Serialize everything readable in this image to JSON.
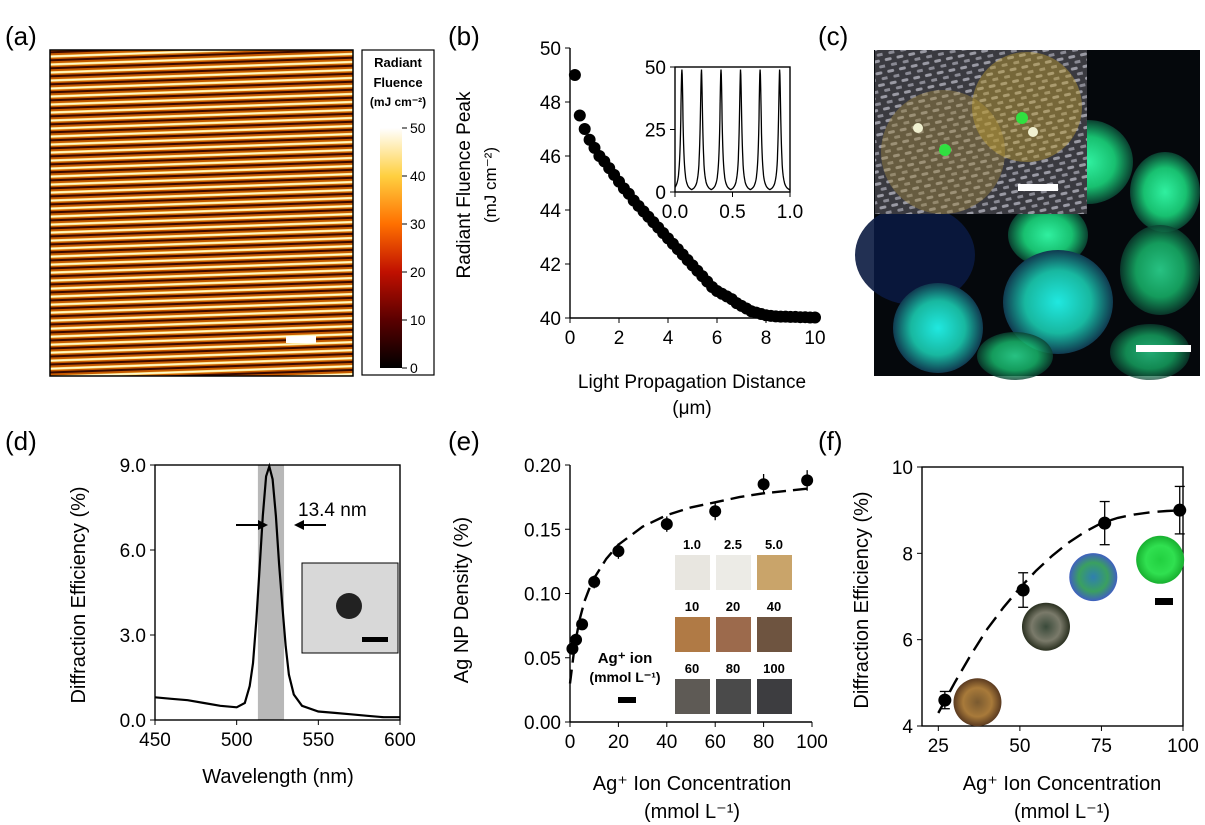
{
  "panel_labels": [
    "(a)",
    "(b)",
    "(c)",
    "(d)",
    "(e)",
    "(f)"
  ],
  "colorbar": {
    "title_lines": [
      "Radiant",
      "Fluence",
      "(mJ cm⁻²)"
    ],
    "ticks": [
      0,
      10,
      20,
      30,
      40,
      50
    ]
  },
  "photo_c": {
    "description_colors": [
      "#0b0f14",
      "#1fd05a",
      "#18c8c0"
    ]
  },
  "chart_data": [
    {
      "panel": "b",
      "type": "scatter",
      "xlabel": "Light Propagation Distance",
      "xlabel_unit": "(μm)",
      "ylabel": "Radiant Fluence Peak",
      "ylabel_unit": "(mJ cm⁻²)",
      "xlim": [
        0,
        10
      ],
      "ylim": [
        40,
        50
      ],
      "xticks": [
        0,
        2,
        4,
        6,
        8,
        10
      ],
      "yticks": [
        40,
        42,
        44,
        46,
        48,
        50
      ],
      "x": [
        0.2,
        0.4,
        0.6,
        0.8,
        1.0,
        1.2,
        1.4,
        1.6,
        1.8,
        2.0,
        2.2,
        2.4,
        2.6,
        2.8,
        3.0,
        3.2,
        3.4,
        3.6,
        3.8,
        4.0,
        4.2,
        4.4,
        4.6,
        4.8,
        5.0,
        5.2,
        5.4,
        5.6,
        5.8,
        6.0,
        6.2,
        6.4,
        6.6,
        6.8,
        7.0,
        7.2,
        7.4,
        7.6,
        7.8,
        8.0,
        8.2,
        8.4,
        8.6,
        8.8,
        9.0,
        9.2,
        9.4,
        9.6,
        9.8,
        10.0
      ],
      "y": [
        49.0,
        47.5,
        47.0,
        46.6,
        46.3,
        46.0,
        45.8,
        45.55,
        45.3,
        45.05,
        44.8,
        44.6,
        44.35,
        44.15,
        43.95,
        43.75,
        43.55,
        43.35,
        43.15,
        42.95,
        42.75,
        42.55,
        42.35,
        42.15,
        41.95,
        41.75,
        41.55,
        41.35,
        41.15,
        41.0,
        40.9,
        40.8,
        40.7,
        40.55,
        40.45,
        40.35,
        40.25,
        40.2,
        40.15,
        40.1,
        40.08,
        40.06,
        40.05,
        40.05,
        40.04,
        40.04,
        40.03,
        40.03,
        40.02,
        40.02
      ],
      "inset": {
        "type": "line",
        "xlim": [
          0,
          1
        ],
        "ylim": [
          0,
          50
        ],
        "xticks": [
          "0.0",
          "0.5",
          "1.0"
        ],
        "xtick_values": [
          0,
          0.5,
          1
        ],
        "yticks": [
          0,
          25,
          50
        ],
        "peaks_x": [
          0.06,
          0.23,
          0.4,
          0.57,
          0.74,
          0.91
        ],
        "peak_height": 49
      }
    },
    {
      "panel": "d",
      "type": "line",
      "xlabel": "Wavelength (nm)",
      "ylabel": "Diffraction Efficiency (%)",
      "xlim": [
        450,
        600
      ],
      "ylim": [
        0,
        9
      ],
      "xticks": [
        450,
        500,
        550,
        600
      ],
      "yticks": [
        "0.0",
        "3.0",
        "6.0",
        "9.0"
      ],
      "ytick_values": [
        0,
        3,
        6,
        9
      ],
      "x": [
        450,
        460,
        470,
        480,
        490,
        500,
        505,
        508,
        510,
        512,
        514,
        516,
        518,
        520,
        522,
        524,
        526,
        528,
        530,
        532,
        535,
        540,
        550,
        560,
        570,
        580,
        590,
        600
      ],
      "y": [
        0.8,
        0.75,
        0.7,
        0.6,
        0.5,
        0.45,
        0.6,
        1.2,
        2.0,
        3.5,
        5.3,
        7.2,
        8.6,
        8.95,
        8.5,
        7.2,
        5.5,
        4.0,
        2.6,
        1.6,
        0.9,
        0.5,
        0.3,
        0.25,
        0.2,
        0.15,
        0.1,
        0.1
      ],
      "band": [
        513,
        529
      ],
      "annotation": "13.4 nm"
    },
    {
      "panel": "e",
      "type": "scatter",
      "xlabel": "Ag⁺ Ion Concentration",
      "xlabel_unit": "(mmol L⁻¹)",
      "ylabel": "Ag NP Density (%)",
      "xlim": [
        0,
        100
      ],
      "ylim": [
        0,
        0.2
      ],
      "xticks": [
        0,
        20,
        40,
        60,
        80,
        100
      ],
      "yticks": [
        "0.00",
        "0.05",
        "0.10",
        "0.15",
        "0.20"
      ],
      "ytick_values": [
        0,
        0.05,
        0.1,
        0.15,
        0.2
      ],
      "x": [
        1,
        2.5,
        5,
        10,
        20,
        40,
        60,
        80,
        98
      ],
      "y": [
        0.057,
        0.064,
        0.076,
        0.109,
        0.133,
        0.154,
        0.164,
        0.185,
        0.188
      ],
      "err": [
        0.004,
        0.004,
        0.004,
        0.005,
        0.006,
        0.006,
        0.007,
        0.008,
        0.008
      ],
      "fit_x": [
        0,
        2,
        4,
        6,
        8,
        10,
        15,
        20,
        30,
        40,
        50,
        60,
        70,
        80,
        90,
        100
      ],
      "fit_y": [
        0.03,
        0.06,
        0.08,
        0.094,
        0.104,
        0.112,
        0.127,
        0.138,
        0.152,
        0.161,
        0.167,
        0.171,
        0.175,
        0.178,
        0.18,
        0.182
      ],
      "inset": {
        "legend_lines": [
          "Ag⁺ ion",
          "(mmol L⁻¹)"
        ],
        "rows": [
          {
            "labels": [
              "1.0",
              "2.5",
              "5.0"
            ],
            "colors": [
              "#e8e6e0",
              "#ecebe6",
              "#c9a46a"
            ]
          },
          {
            "labels": [
              "10",
              "20",
              "40"
            ],
            "colors": [
              "#b07a45",
              "#9c6a4c",
              "#6e5440"
            ]
          },
          {
            "labels": [
              "60",
              "80",
              "100"
            ],
            "colors": [
              "#5e5a55",
              "#4a4a4a",
              "#3d3d40"
            ]
          }
        ]
      }
    },
    {
      "panel": "f",
      "type": "scatter",
      "xlabel": "Ag⁺ Ion Concentration",
      "xlabel_unit": "(mmol L⁻¹)",
      "ylabel": "Diffraction Efficiency (%)",
      "xlim": [
        20,
        100
      ],
      "ylim": [
        4,
        10
      ],
      "xticks": [
        25,
        50,
        75,
        100
      ],
      "yticks": [
        4,
        6,
        8,
        10
      ],
      "x": [
        27,
        51,
        76,
        99
      ],
      "y": [
        4.6,
        7.15,
        8.7,
        9.0
      ],
      "err": [
        0.2,
        0.4,
        0.5,
        0.55
      ],
      "fit_x": [
        25,
        30,
        35,
        40,
        45,
        50,
        55,
        60,
        65,
        70,
        75,
        80,
        85,
        90,
        95,
        100
      ],
      "fit_y": [
        4.3,
        5.0,
        5.65,
        6.25,
        6.75,
        7.2,
        7.6,
        7.95,
        8.25,
        8.5,
        8.7,
        8.82,
        8.9,
        8.95,
        8.98,
        9.0
      ],
      "discs": [
        {
          "x": 37,
          "y": 4.55,
          "colors": [
            "#7a5a30",
            "#a87a3a",
            "#5a3a20"
          ]
        },
        {
          "x": 58,
          "y": 6.3,
          "colors": [
            "#3a4a3a",
            "#7a7a6a",
            "#2a3020"
          ]
        },
        {
          "x": 72.5,
          "y": 7.45,
          "colors": [
            "#2f7fb0",
            "#3aa060",
            "#4060c0"
          ]
        },
        {
          "x": 93,
          "y": 7.85,
          "colors": [
            "#22d040",
            "#30e050",
            "#18b030"
          ]
        }
      ]
    }
  ]
}
